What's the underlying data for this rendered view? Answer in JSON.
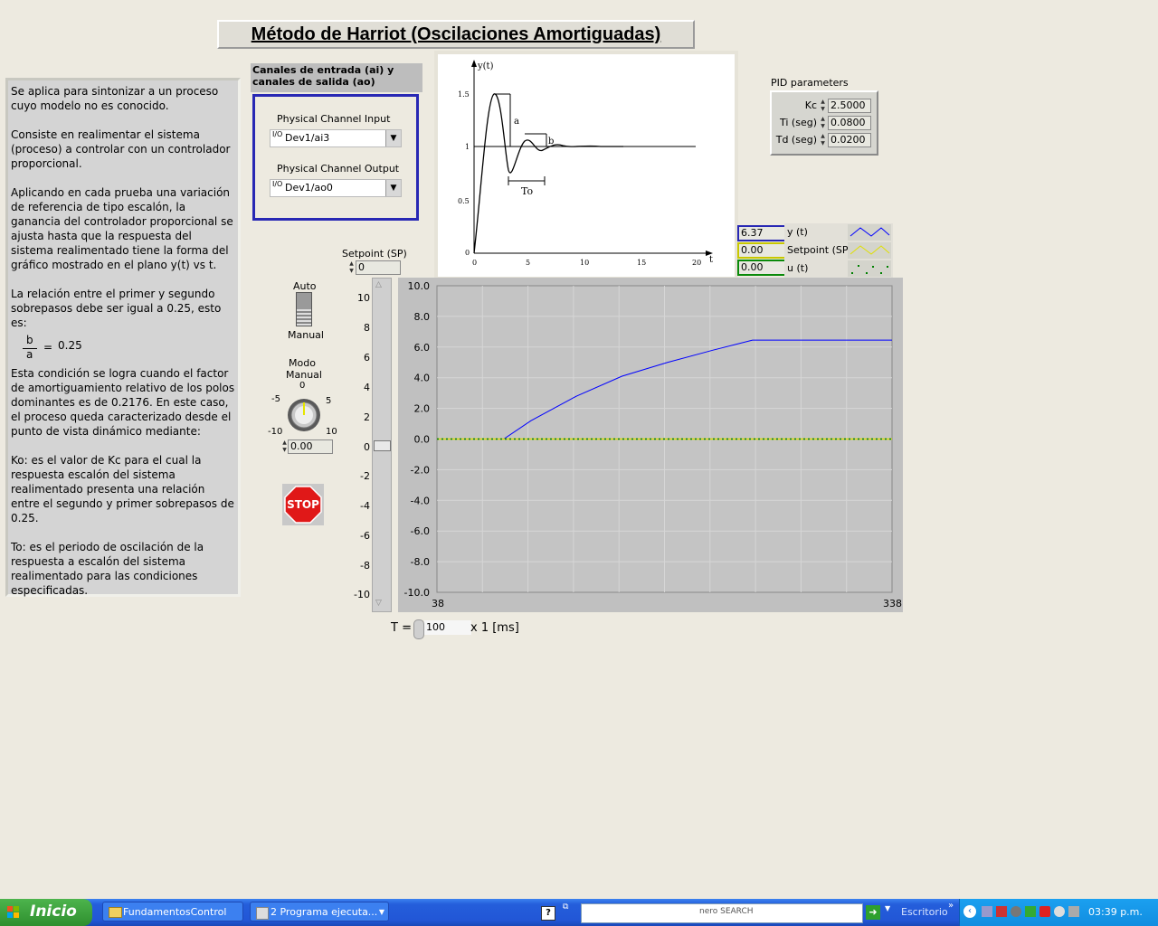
{
  "title": "Método de Harriot (Oscilaciones Amortiguadas)",
  "description": "Se aplica para sintonizar a un proceso cuyo modelo no es conocido.\n\nConsiste en realimentar el sistema (proceso) a controlar con un controlador proporcional.\n\nAplicando en cada prueba una variación de referencia de tipo escalón, la ganancia del controlador proporcional se ajusta hasta que la respuesta del sistema realimentado tiene la forma del\ngráfico mostrado en el plano  y(t) vs t.\n\nLa relación entre el primer y segundo sobrepasos debe ser igual a 0.25, esto es:",
  "fraction": {
    "num": "b",
    "den": "a",
    "equals": "=",
    "value": "0.25"
  },
  "description2": "Esta condición se logra cuando el factor de amortiguamiento relativo de los polos dominantes es de 0.2176. En este caso, el proceso queda caracterizado desde el punto de vista dinámico mediante:\n\nKo: es el valor de Kc para el cual la respuesta escalón del sistema realimentado presenta una relación entre el segundo y primer sobrepasos de 0.25.\n\nTo: es el periodo de oscilación de la respuesta a escalón del sistema realimentado para las condiciones especificadas.",
  "channels": {
    "header": "Canales de entrada (ai) y canales de salida (ao)",
    "input_label": "Physical Channel Input",
    "input_value": "Dev1/ai3",
    "output_label": "Physical Channel Output",
    "output_value": "Dev1/ao0",
    "io_glyph": "I/O"
  },
  "reference_plot": {
    "y_label": "y(t)",
    "x_label": "t",
    "y_ticks": [
      "1.5",
      "1",
      "0.5",
      "0"
    ],
    "x_ticks": [
      "0",
      "5",
      "10",
      "15",
      "20"
    ],
    "annot_a": "a",
    "annot_b": "b",
    "annot_to": "To"
  },
  "pid": {
    "header": "PID parameters",
    "kc_label": "Kc",
    "kc_value": "2.5000",
    "ti_label": "Ti (seg)",
    "ti_value": "0.0800",
    "td_label": "Td (seg)",
    "td_value": "0.0200"
  },
  "legend": {
    "items": [
      {
        "value": "6.37",
        "name": "y (t)",
        "color": "#0000ff"
      },
      {
        "value": "0.00",
        "name": "Setpoint (SP)",
        "color": "#e0e000"
      },
      {
        "value": "0.00",
        "name": "u (t)",
        "color": "#008000"
      }
    ]
  },
  "setpoint": {
    "label": "Setpoint (SP)",
    "value": "0",
    "scale": [
      "10",
      "8",
      "6",
      "4",
      "2",
      "0",
      "-2",
      "-4",
      "-6",
      "-8",
      "-10"
    ]
  },
  "mode_switch": {
    "top": "Auto",
    "bottom": "Manual"
  },
  "knob": {
    "label": "Modo Manual",
    "ticks": {
      "t0": "0",
      "tm5": "-5",
      "t5": "5",
      "tm10": "-10",
      "t10": "10"
    },
    "value": "0.00",
    "level": 0
  },
  "stop_label": "STOP",
  "sample_time": {
    "label": "T =",
    "value": "100",
    "unit": "x 1 [ms]"
  },
  "chart_data": {
    "type": "line",
    "x_range": [
      38,
      338
    ],
    "ylim": [
      -10,
      10
    ],
    "y_ticks": [
      "10.0",
      "8.0",
      "6.0",
      "4.0",
      "2.0",
      "0.0",
      "-2.0",
      "-4.0",
      "-6.0",
      "-8.0",
      "-10.0"
    ],
    "x_ticks": [
      "38",
      "338"
    ],
    "grid": true,
    "series": [
      {
        "name": "y (t)",
        "color": "#0000ff",
        "x": [
          38,
          82,
          100,
          130,
          160,
          190,
          220,
          246,
          338
        ],
        "y": [
          0,
          0,
          1.2,
          2.8,
          4.1,
          5.0,
          5.8,
          6.45,
          6.45
        ]
      },
      {
        "name": "Setpoint (SP)",
        "color": "#d8d800",
        "x": [
          38,
          338
        ],
        "y": [
          0,
          0
        ]
      },
      {
        "name": "u (t)",
        "color": "#008000",
        "x": [
          38,
          338
        ],
        "y": [
          0,
          0
        ]
      }
    ]
  },
  "taskbar": {
    "start": "Inicio",
    "task1": "FundamentosControl",
    "task2": "2 Programa ejecuta...",
    "search_brand": "nero SEARCH",
    "desktop": "Escritorio",
    "clock": "03:39 p.m."
  }
}
